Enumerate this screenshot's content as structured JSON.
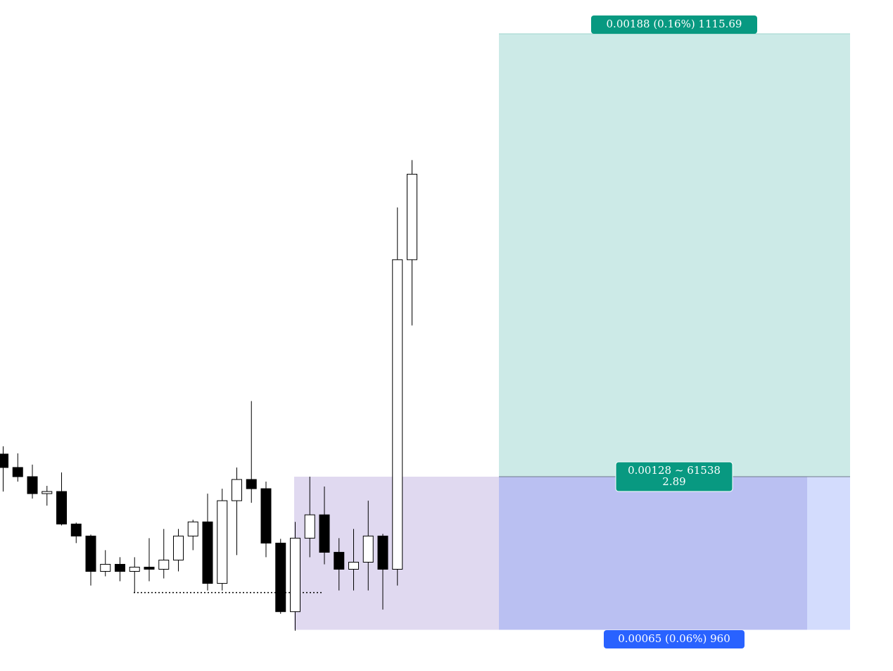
{
  "chart_data": {
    "type": "candlestick",
    "candles": [
      [
        1.175096,
        1.175129,
        1.174937,
        1.175039
      ],
      [
        1.175039,
        1.175099,
        1.174979,
        1.175
      ],
      [
        1.175,
        1.175051,
        1.174907,
        1.174928
      ],
      [
        1.174928,
        1.174961,
        1.174877,
        1.174937
      ],
      [
        1.174937,
        1.175018,
        1.174793,
        1.174799
      ],
      [
        1.174799,
        1.174805,
        1.174718,
        1.174748
      ],
      [
        1.174748,
        1.174754,
        1.174538,
        1.174598
      ],
      [
        1.174598,
        1.174688,
        1.174577,
        1.174628
      ],
      [
        1.174628,
        1.174658,
        1.174556,
        1.174598
      ],
      [
        1.174598,
        1.174658,
        1.174508,
        1.174616
      ],
      [
        1.174616,
        1.174739,
        1.174556,
        1.174607
      ],
      [
        1.174607,
        1.174778,
        1.174568,
        1.174646
      ],
      [
        1.174646,
        1.174778,
        1.174598,
        1.174748
      ],
      [
        1.174748,
        1.174817,
        1.174688,
        1.174808
      ],
      [
        1.174808,
        1.174928,
        1.174517,
        1.174547
      ],
      [
        1.174547,
        1.174949,
        1.174517,
        1.174898
      ],
      [
        1.174898,
        1.175039,
        1.174667,
        1.174988
      ],
      [
        1.174988,
        1.175321,
        1.174889,
        1.174949
      ],
      [
        1.174949,
        1.174979,
        1.174658,
        1.174718
      ],
      [
        1.174718,
        1.174736,
        1.174418,
        1.174427
      ],
      [
        1.174427,
        1.174808,
        1.174346,
        1.174739
      ],
      [
        1.174739,
        1.175,
        1.174658,
        1.174838
      ],
      [
        1.174838,
        1.174958,
        1.174628,
        1.174679
      ],
      [
        1.174679,
        1.174739,
        1.174517,
        1.174607
      ],
      [
        1.174607,
        1.174778,
        1.174517,
        1.174637
      ],
      [
        1.174637,
        1.174898,
        1.174517,
        1.174748
      ],
      [
        1.174748,
        1.174757,
        1.174436,
        1.174607
      ],
      [
        1.174607,
        1.176143,
        1.174538,
        1.175921
      ],
      [
        1.175921,
        1.176344,
        1.175642,
        1.176284
      ]
    ],
    "dotted_level": 1.174508,
    "position": {
      "entry": 1.175,
      "target": 1.17688,
      "stop": 1.17435,
      "target_label": "0.00188 (0.16%) 1115.69",
      "center_label": [
        "0.00128 ~ 61538",
        "2.89"
      ],
      "stop_label": "0.00065 (0.06%) 960"
    }
  }
}
